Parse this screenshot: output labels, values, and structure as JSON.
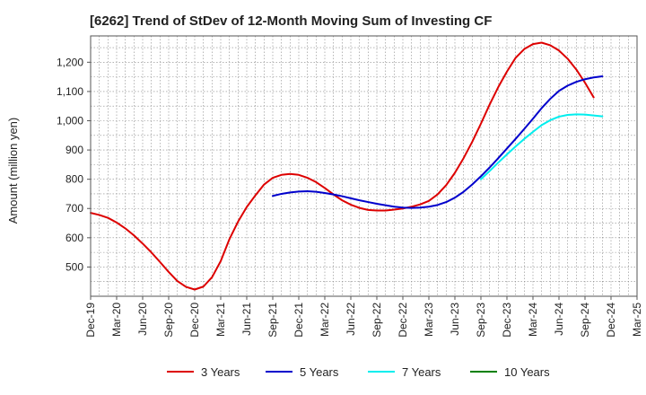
{
  "chart_data": {
    "type": "line",
    "title": "[6262]  Trend of StDev of 12-Month Moving Sum of Investing CF",
    "ylabel": "Amount (million yen)",
    "xlabel": "",
    "ylim": [
      400,
      1290
    ],
    "yticks": [
      500,
      600,
      700,
      800,
      900,
      1000,
      1100,
      1200
    ],
    "ytick_labels": [
      "500",
      "600",
      "700",
      "800",
      "900",
      "1,000",
      "1,100",
      "1,200"
    ],
    "x_categories": [
      "Dec-19",
      "Mar-20",
      "Jun-20",
      "Sep-20",
      "Dec-20",
      "Mar-21",
      "Jun-21",
      "Sep-21",
      "Dec-21",
      "Mar-22",
      "Jun-22",
      "Sep-22",
      "Dec-22",
      "Mar-23",
      "Jun-23",
      "Sep-23",
      "Dec-23",
      "Mar-24",
      "Jun-24",
      "Sep-24",
      "Dec-24",
      "Mar-25"
    ],
    "grid": true,
    "legend_position": "bottom",
    "series": [
      {
        "name": "3 Years",
        "color": "#dd0000",
        "start_index": 0,
        "values": [
          685,
          678,
          668,
          652,
          632,
          608,
          580,
          550,
          517,
          483,
          452,
          432,
          423,
          433,
          465,
          520,
          595,
          655,
          705,
          745,
          782,
          805,
          815,
          818,
          815,
          805,
          790,
          770,
          748,
          728,
          713,
          702,
          695,
          693,
          693,
          696,
          700,
          706,
          714,
          726,
          748,
          780,
          822,
          872,
          928,
          990,
          1055,
          1115,
          1168,
          1215,
          1245,
          1262,
          1267,
          1258,
          1240,
          1212,
          1175,
          1130,
          1080
        ]
      },
      {
        "name": "5 Years",
        "color": "#0000cc",
        "start_index": 21,
        "values": [
          743,
          750,
          755,
          758,
          759,
          757,
          753,
          748,
          742,
          735,
          728,
          722,
          716,
          711,
          706,
          703,
          702,
          703,
          706,
          712,
          722,
          737,
          757,
          782,
          810,
          840,
          872,
          905,
          938,
          972,
          1007,
          1043,
          1075,
          1102,
          1120,
          1133,
          1142,
          1148,
          1152
        ]
      },
      {
        "name": "7 Years",
        "color": "#00eeee",
        "start_index": 45,
        "values": [
          800,
          828,
          857,
          885,
          912,
          938,
          962,
          985,
          1002,
          1014,
          1020,
          1022,
          1021,
          1018,
          1015
        ]
      },
      {
        "name": "10 Years",
        "color": "#008000",
        "start_index": 0,
        "values": []
      }
    ]
  }
}
